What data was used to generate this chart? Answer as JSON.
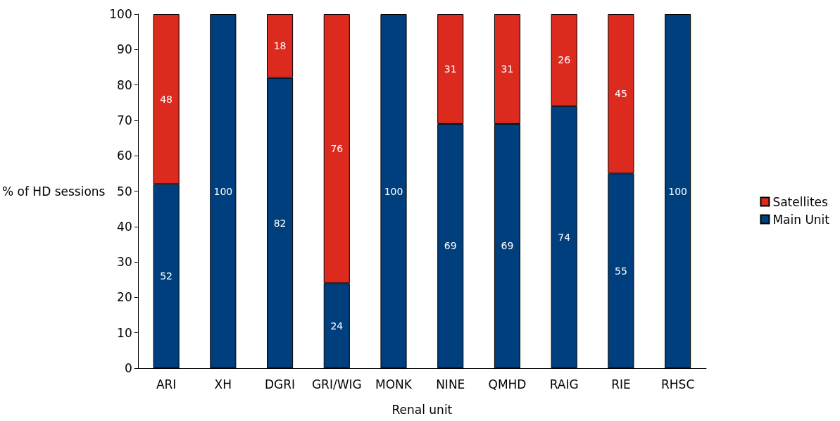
{
  "chart_data": {
    "type": "bar",
    "stacked": true,
    "xlabel": "Renal unit",
    "ylabel": "% of HD sessions",
    "categories": [
      "ARI",
      "XH",
      "DGRI",
      "GRI/WIG",
      "MONK",
      "NINE",
      "QMHD",
      "RAIG",
      "RIE",
      "RHSC"
    ],
    "series": [
      {
        "name": "Main Unit",
        "color": "#003f7d",
        "values": [
          52,
          100,
          82,
          24,
          100,
          69,
          69,
          74,
          55,
          100
        ]
      },
      {
        "name": "Satellites",
        "color": "#dc2a1e",
        "values": [
          48,
          null,
          18,
          76,
          null,
          31,
          31,
          26,
          45,
          null
        ]
      }
    ],
    "ylim": [
      0,
      100
    ],
    "yticks": [
      0,
      10,
      20,
      30,
      40,
      50,
      60,
      70,
      80,
      90,
      100
    ],
    "data_labels": true,
    "grid": false,
    "legend": "right"
  }
}
